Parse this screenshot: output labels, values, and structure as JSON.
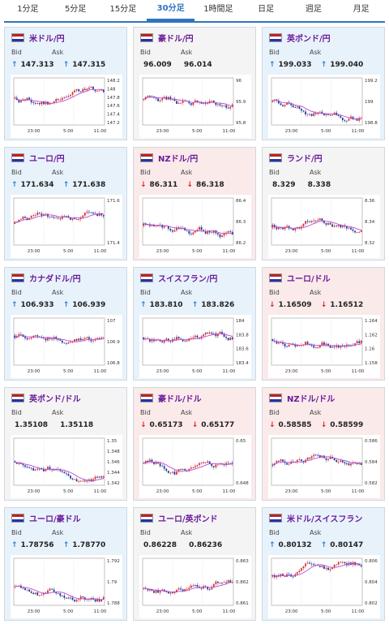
{
  "tabs": [
    {
      "label": "1分足"
    },
    {
      "label": "5分足"
    },
    {
      "label": "15分足"
    },
    {
      "label": "30分足"
    },
    {
      "label": "1時間足"
    },
    {
      "label": "日足"
    },
    {
      "label": "週足"
    },
    {
      "label": "月足"
    }
  ],
  "active_tab": "30分足",
  "bid_label": "Bid",
  "ask_label": "Ask",
  "cards": [
    {
      "name": "米ドル/円",
      "bid": "147.313",
      "ask": "147.315",
      "dir": "up",
      "ticks": [
        "148.2",
        "148",
        "147.8",
        "147.6",
        "147.4",
        "147.2"
      ],
      "times": [
        "23:00",
        "5:00",
        "11:00"
      ]
    },
    {
      "name": "豪ドル/円",
      "bid": "96.009",
      "ask": "96.014",
      "dir": "flat",
      "ticks": [
        "96",
        "95.9",
        "95.8"
      ],
      "times": [
        "23:00",
        "5:00",
        "11:00"
      ]
    },
    {
      "name": "英ポンド/円",
      "bid": "199.033",
      "ask": "199.040",
      "dir": "up",
      "ticks": [
        "199.2",
        "199",
        "198.8"
      ],
      "times": [
        "23:00",
        "5:00",
        "11:00"
      ]
    },
    {
      "name": "ユーロ/円",
      "bid": "171.634",
      "ask": "171.638",
      "dir": "up",
      "ticks": [
        "171.6",
        "171.4"
      ],
      "times": [
        "23:00",
        "5:00",
        "11:00"
      ]
    },
    {
      "name": "NZドル/円",
      "bid": "86.311",
      "ask": "86.318",
      "dir": "down",
      "ticks": [
        "86.4",
        "86.3",
        "86.2"
      ],
      "times": [
        "23:00",
        "5:00",
        "11:00"
      ]
    },
    {
      "name": "ランド/円",
      "bid": "8.329",
      "ask": "8.338",
      "dir": "flat",
      "ticks": [
        "8.36",
        "8.34",
        "8.32"
      ],
      "times": [
        "23:00",
        "5:00",
        "11:00"
      ]
    },
    {
      "name": "カナダドル/円",
      "bid": "106.933",
      "ask": "106.939",
      "dir": "up",
      "ticks": [
        "107",
        "106.9",
        "106.8"
      ],
      "times": [
        "23:00",
        "5:00",
        "11:00"
      ]
    },
    {
      "name": "スイスフラン/円",
      "bid": "183.810",
      "ask": "183.826",
      "dir": "up",
      "ticks": [
        "184",
        "183.8",
        "183.6",
        "183.4"
      ],
      "times": [
        "23:00",
        "5:00",
        "11:00"
      ]
    },
    {
      "name": "ユーロ/ドル",
      "bid": "1.16509",
      "ask": "1.16512",
      "dir": "down",
      "ticks": [
        "1.164",
        "1.162",
        "1.16",
        "1.158"
      ],
      "times": [
        "23:00",
        "5:00",
        "11:00"
      ]
    },
    {
      "name": "英ポンド/ドル",
      "bid": "1.35108",
      "ask": "1.35118",
      "dir": "flat",
      "ticks": [
        "1.35",
        "1.348",
        "1.346",
        "1.344",
        "1.342"
      ],
      "times": [
        "23:00",
        "5:00",
        "11:00"
      ]
    },
    {
      "name": "豪ドル/ドル",
      "bid": "0.65173",
      "ask": "0.65177",
      "dir": "down",
      "ticks": [
        "0.65",
        "0.648"
      ],
      "times": [
        "23:00",
        "5:00",
        "11:00"
      ]
    },
    {
      "name": "NZドル/ドル",
      "bid": "0.58585",
      "ask": "0.58599",
      "dir": "down",
      "ticks": [
        "0.586",
        "0.584",
        "0.582"
      ],
      "times": [
        "23:00",
        "5:00",
        "11:00"
      ]
    },
    {
      "name": "ユーロ/豪ドル",
      "bid": "1.78756",
      "ask": "1.78770",
      "dir": "up",
      "ticks": [
        "1.792",
        "1.79",
        "1.788"
      ],
      "times": [
        "23:00",
        "5:00",
        "11:00"
      ]
    },
    {
      "name": "ユーロ/英ポンド",
      "bid": "0.86228",
      "ask": "0.86236",
      "dir": "flat",
      "ticks": [
        "0.863",
        "0.862",
        "0.861"
      ],
      "times": [
        "23:00",
        "5:00",
        "11:00"
      ]
    },
    {
      "name": "米ドル/スイスフラン",
      "bid": "0.80132",
      "ask": "0.80147",
      "dir": "up",
      "ticks": [
        "0.806",
        "0.804",
        "0.802"
      ],
      "times": [
        "23:00",
        "5:00",
        "11:00"
      ]
    }
  ],
  "colors": {
    "up_bg": "#e8f2fb",
    "down_bg": "#fbeaea",
    "flat_bg": "#f4f4f4",
    "candle_up": "#d32f2f",
    "candle_down": "#1e3a9a",
    "ma": "#c04bd0"
  }
}
